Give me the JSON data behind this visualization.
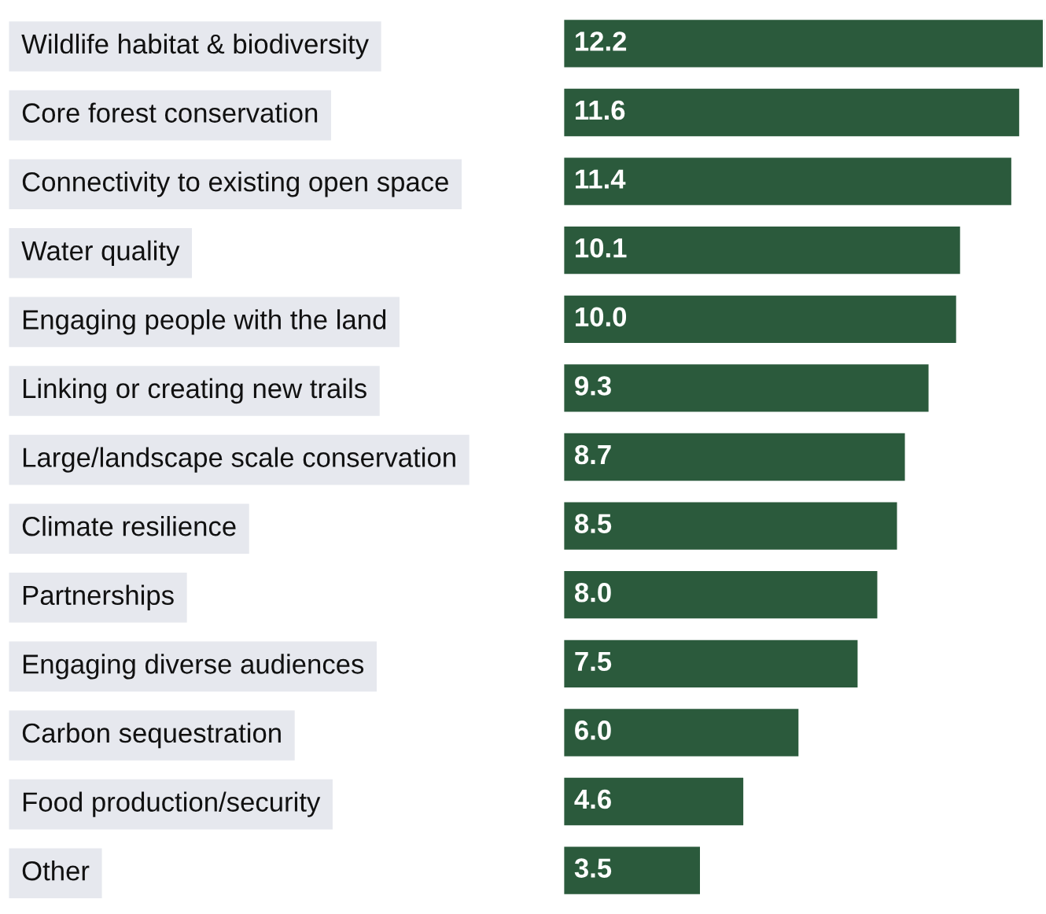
{
  "chart_data": {
    "type": "bar",
    "orientation": "horizontal",
    "value_labels": [
      "12.2",
      "11.6",
      "11.4",
      "10.1",
      "10.0",
      "9.3",
      "8.7",
      "8.5",
      "8.0",
      "7.5",
      "6.0",
      "4.6",
      "3.5"
    ],
    "tick_labels": "y",
    "grid": false,
    "legend": false,
    "categories": [
      "Wildlife habitat & biodiversity",
      "Core forest conservation",
      "Connectivity to existing open space",
      "Water quality",
      "Engaging people with the land",
      "Linking or creating new trails",
      "Large/landscape scale conservation",
      "Climate resilience",
      "Partnerships",
      "Engaging diverse audiences",
      "Carbon sequestration",
      "Food production/security",
      "Other"
    ],
    "values": [
      12.2,
      11.6,
      11.4,
      10.1,
      10.0,
      9.3,
      8.7,
      8.5,
      8.0,
      7.5,
      6.0,
      4.6,
      3.5
    ],
    "color": "#2b5a3c"
  }
}
